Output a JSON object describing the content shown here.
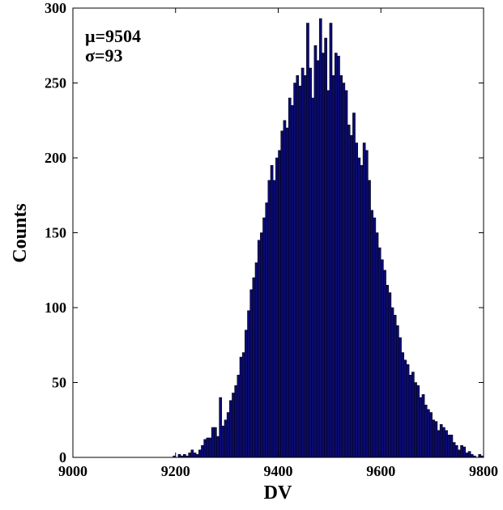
{
  "chart_data": {
    "type": "histogram",
    "xlabel": "DV",
    "ylabel": "Counts",
    "annotations": [
      "μ=9504",
      "σ=93"
    ],
    "color": "#0b0b72",
    "edgecolor": "#000000",
    "xlim": [
      9000,
      9800
    ],
    "xticks": [
      9000,
      9200,
      9400,
      9600,
      9800
    ],
    "ylim": [
      0,
      300
    ],
    "yticks": [
      0,
      50,
      100,
      150,
      200,
      250,
      300
    ],
    "bins": [
      9190,
      9195,
      9200,
      9205,
      9210,
      9215,
      9220,
      9225,
      9230,
      9235,
      9240,
      9245,
      9250,
      9255,
      9260,
      9265,
      9270,
      9275,
      9280,
      9285,
      9290,
      9295,
      9300,
      9305,
      9310,
      9315,
      9320,
      9325,
      9330,
      9335,
      9340,
      9345,
      9350,
      9355,
      9360,
      9365,
      9370,
      9375,
      9380,
      9385,
      9390,
      9395,
      9400,
      9405,
      9410,
      9415,
      9420,
      9425,
      9430,
      9435,
      9440,
      9445,
      9450,
      9455,
      9460,
      9465,
      9470,
      9475,
      9480,
      9485,
      9490,
      9495,
      9500,
      9505,
      9510,
      9515,
      9520,
      9525,
      9530,
      9535,
      9540,
      9545,
      9550,
      9555,
      9560,
      9565,
      9570,
      9575,
      9580,
      9585,
      9590,
      9595,
      9600,
      9605,
      9610,
      9615,
      9620,
      9625,
      9630,
      9635,
      9640,
      9645,
      9650,
      9655,
      9660,
      9665,
      9670,
      9675,
      9680,
      9685,
      9690,
      9695,
      9700,
      9705,
      9710,
      9715,
      9720,
      9725,
      9730,
      9735,
      9740,
      9745,
      9750,
      9755,
      9760,
      9765,
      9770,
      9775,
      9780,
      9785,
      9790,
      9795,
      9800
    ],
    "values": [
      0,
      1,
      0,
      2,
      1,
      2,
      1,
      3,
      5,
      3,
      2,
      5,
      8,
      12,
      13,
      13,
      20,
      20,
      14,
      40,
      21,
      25,
      30,
      38,
      43,
      48,
      55,
      67,
      70,
      85,
      98,
      112,
      120,
      130,
      145,
      150,
      160,
      170,
      185,
      195,
      185,
      200,
      205,
      218,
      225,
      220,
      240,
      235,
      250,
      255,
      248,
      260,
      255,
      290,
      260,
      240,
      275,
      265,
      293,
      270,
      280,
      245,
      290,
      255,
      270,
      268,
      255,
      250,
      245,
      222,
      215,
      230,
      210,
      200,
      195,
      210,
      205,
      185,
      165,
      160,
      150,
      140,
      132,
      125,
      115,
      110,
      100,
      95,
      88,
      80,
      70,
      65,
      62,
      55,
      57,
      50,
      48,
      40,
      42,
      35,
      32,
      30,
      25,
      24,
      18,
      22,
      20,
      18,
      15,
      15,
      10,
      8,
      5,
      8,
      7,
      3,
      4,
      2,
      1,
      0,
      2,
      1
    ]
  }
}
